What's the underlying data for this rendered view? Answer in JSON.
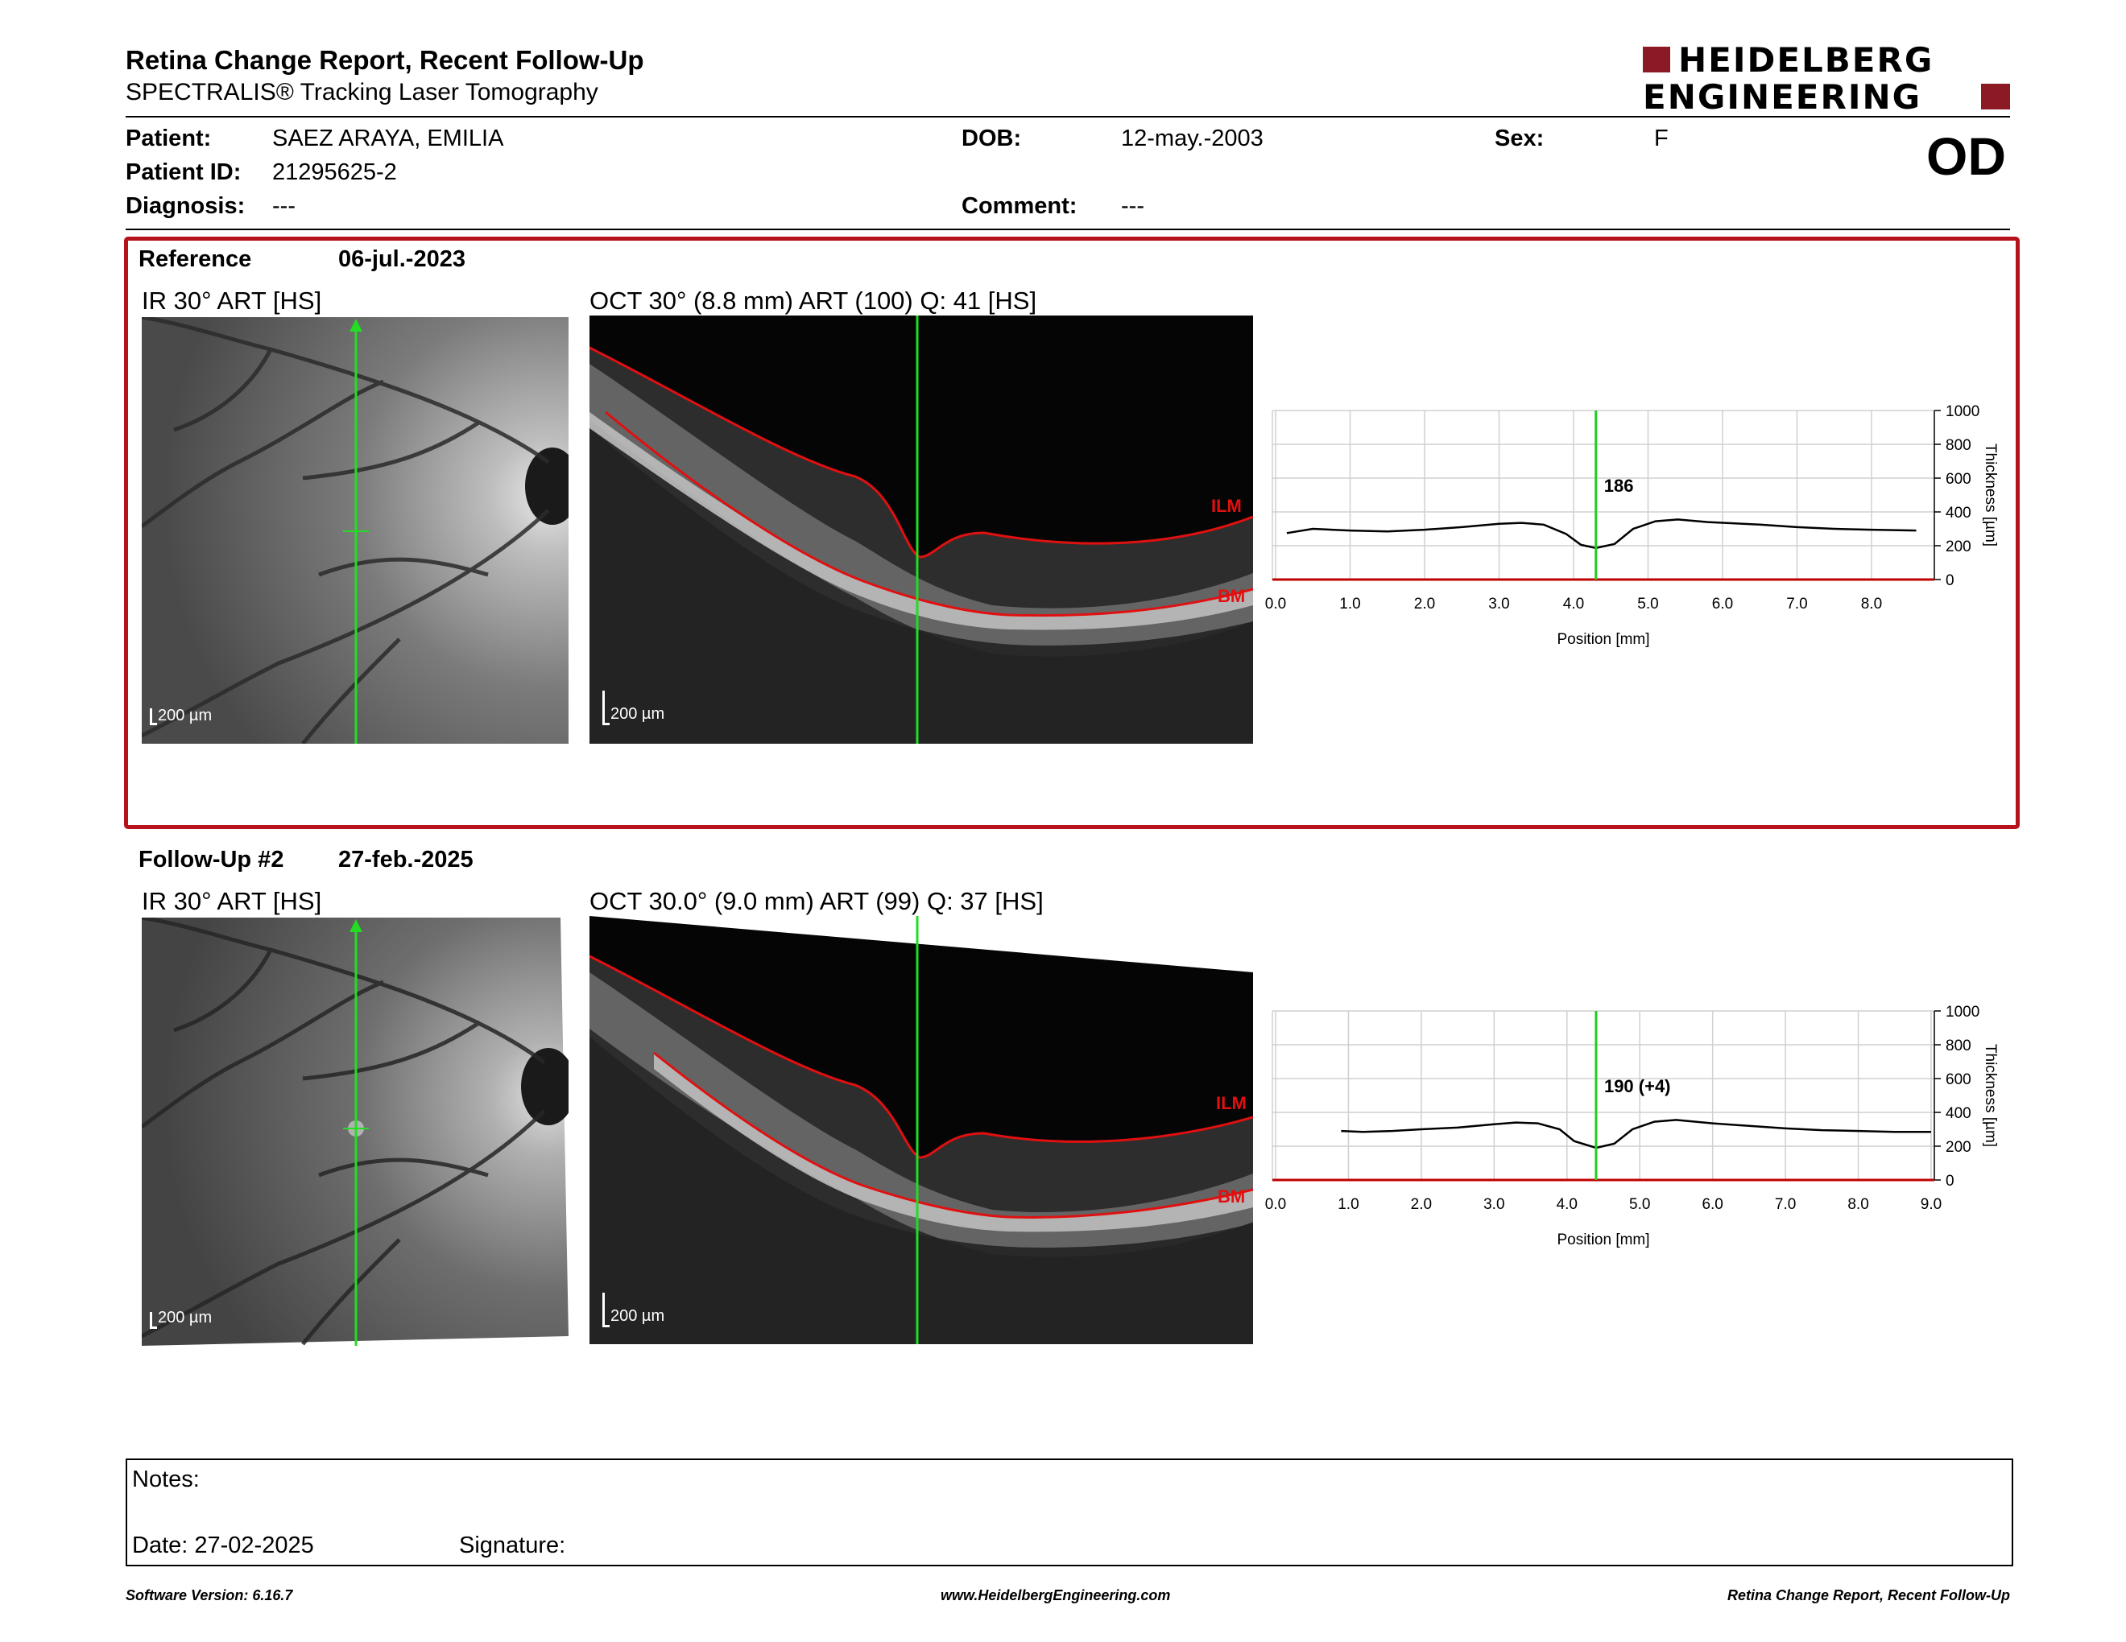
{
  "header": {
    "title": "Retina Change Report, Recent Follow-Up",
    "subtitle": "SPECTRALIS® Tracking Laser Tomography",
    "logo_line1": "HEIDELBERG",
    "logo_line2": "ENGINEERING",
    "eye": "OD"
  },
  "patient": {
    "patient_label": "Patient:",
    "patient_value": "SAEZ ARAYA, EMILIA",
    "id_label": "Patient ID:",
    "id_value": "21295625-2",
    "diagnosis_label": "Diagnosis:",
    "diagnosis_value": "---",
    "dob_label": "DOB:",
    "dob_value": "12-may.-2003",
    "comment_label": "Comment:",
    "comment_value": "---",
    "sex_label": "Sex:",
    "sex_value": "F"
  },
  "reference": {
    "label": "Reference",
    "date": "06-jul.-2023",
    "ir_caption": "IR 30° ART [HS]",
    "oct_caption": "OCT 30° (8.8 mm) ART (100) Q: 41 [HS]",
    "ir_scale": "200 µm",
    "oct_scale": "200 µm",
    "ilm": "ILM",
    "bm": "BM",
    "value_label": "186"
  },
  "followup": {
    "label": "Follow-Up #2",
    "date": "27-feb.-2025",
    "ir_caption": "IR 30° ART [HS]",
    "oct_caption": "OCT 30.0° (9.0 mm) ART (99) Q: 37 [HS]",
    "ir_scale": "200 µm",
    "oct_scale": "200 µm",
    "ilm": "ILM",
    "bm": "BM",
    "value_label": "190 (+4)"
  },
  "chart_data": [
    {
      "type": "line",
      "xlabel": "Position [mm]",
      "ylabel": "Thickness [µm]",
      "xlim": [
        0,
        8.8
      ],
      "ylim": [
        0,
        1000
      ],
      "x_ticks": [
        "0.0",
        "1.0",
        "2.0",
        "3.0",
        "4.0",
        "5.0",
        "6.0",
        "7.0",
        "8.0"
      ],
      "y_ticks": [
        "0",
        "200",
        "400",
        "600",
        "800",
        "1000"
      ],
      "marker_x": 4.3,
      "x": [
        0.15,
        0.5,
        1.0,
        1.5,
        2.0,
        2.5,
        3.0,
        3.3,
        3.6,
        3.9,
        4.1,
        4.3,
        4.55,
        4.8,
        5.1,
        5.4,
        5.8,
        6.5,
        7.0,
        7.5,
        8.0,
        8.6
      ],
      "y": [
        275,
        300,
        290,
        285,
        295,
        310,
        330,
        335,
        325,
        270,
        205,
        186,
        210,
        300,
        345,
        355,
        340,
        325,
        310,
        300,
        295,
        290
      ]
    },
    {
      "type": "line",
      "xlabel": "Position [mm]",
      "ylabel": "Thickness [µm]",
      "xlim": [
        0,
        9.0
      ],
      "ylim": [
        0,
        1000
      ],
      "x_ticks": [
        "0.0",
        "1.0",
        "2.0",
        "3.0",
        "4.0",
        "5.0",
        "6.0",
        "7.0",
        "8.0",
        "9.0"
      ],
      "y_ticks": [
        "0",
        "200",
        "400",
        "600",
        "800",
        "1000"
      ],
      "marker_x": 4.4,
      "x": [
        0.9,
        1.2,
        1.6,
        2.0,
        2.5,
        3.0,
        3.3,
        3.6,
        3.9,
        4.1,
        4.4,
        4.65,
        4.9,
        5.2,
        5.5,
        6.0,
        6.5,
        7.0,
        7.5,
        8.0,
        8.5,
        9.0
      ],
      "y": [
        290,
        285,
        290,
        300,
        310,
        330,
        340,
        335,
        300,
        230,
        190,
        215,
        300,
        345,
        355,
        335,
        320,
        305,
        295,
        290,
        285,
        285
      ]
    }
  ],
  "notes": {
    "notes_label": "Notes:",
    "date_label": "Date: 27-02-2025",
    "signature_label": "Signature:"
  },
  "footer": {
    "left": "Software Version: 6.16.7",
    "center": "www.HeidelbergEngineering.com",
    "right": "Retina Change Report, Recent Follow-Up"
  }
}
